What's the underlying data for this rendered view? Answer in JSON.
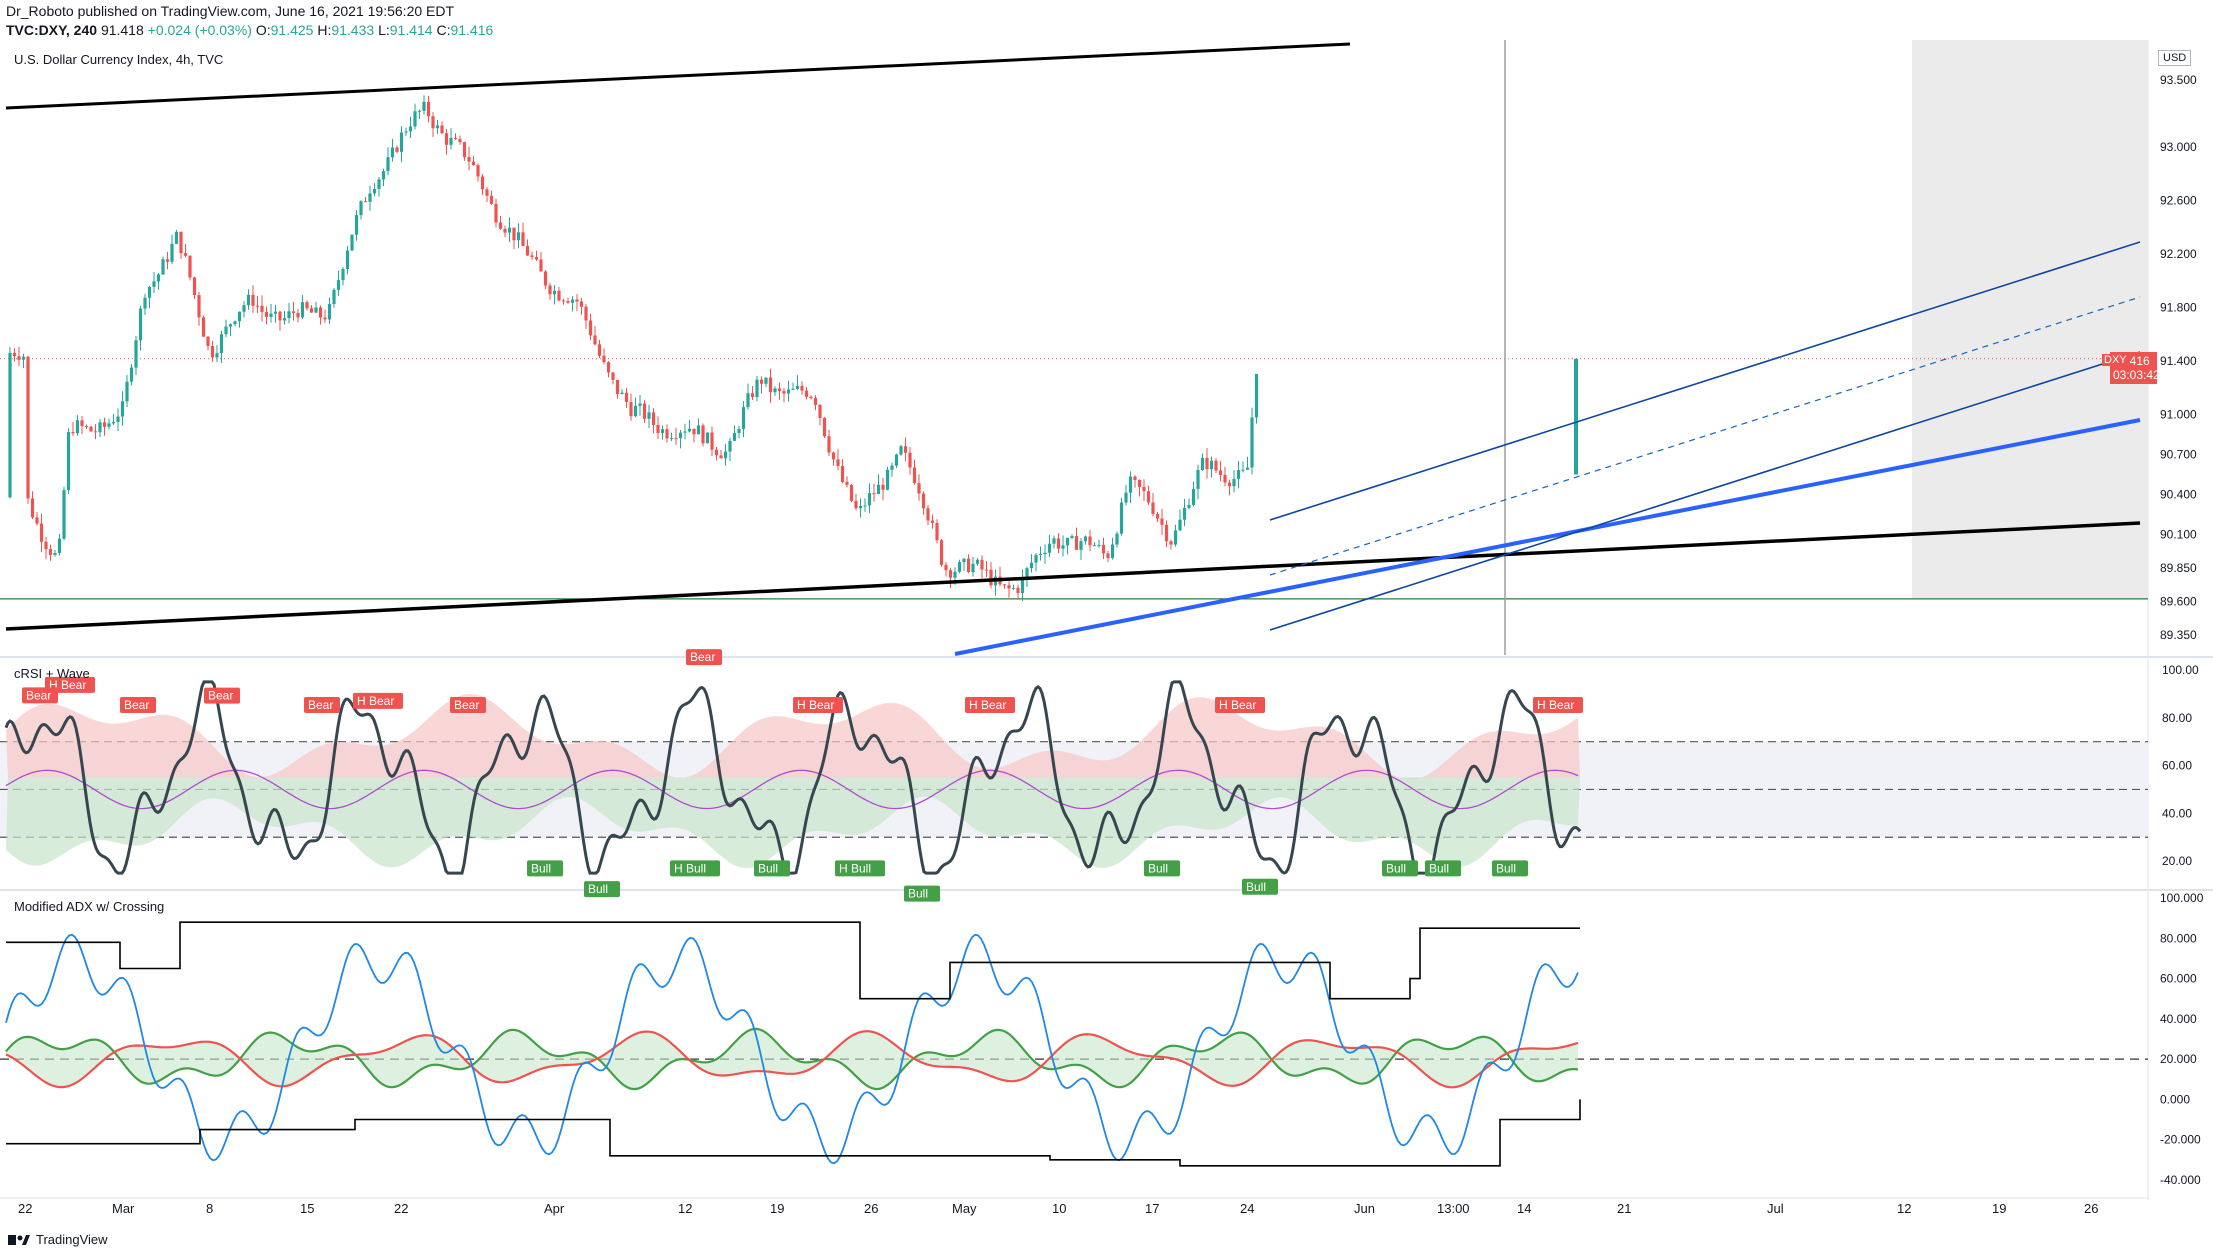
{
  "header": {
    "line1": "Dr_Roboto published on TradingView.com, June 16, 2021 19:56:20 EDT",
    "symbol": "TVC:DXY, 240",
    "last": "91.418",
    "change": "+0.024 (+0.03%)",
    "o_label": "O:",
    "o": "91.425",
    "h_label": "H:",
    "h": "91.433",
    "l_label": "L:",
    "l": "91.414",
    "c_label": "C:",
    "c": "91.416"
  },
  "main_title": "U.S. Dollar Currency Index, 4h, TVC",
  "currency_button": "USD",
  "price_badge": {
    "symbol": "DXY",
    "price": "91.416",
    "countdown": "03:03:42"
  },
  "footer_brand": "TradingView",
  "colors": {
    "bull": "#26a69a",
    "bear": "#ef5350",
    "blue": "#2962ff",
    "green": "#43a047",
    "purple": "#7b3fa0"
  },
  "chart_data": [
    {
      "type": "candlestick",
      "title": "U.S. Dollar Currency Index, 4h, TVC",
      "y_ticks": [
        "93.500",
        "93.000",
        "92.600",
        "92.200",
        "91.800",
        "91.400",
        "91.000",
        "90.700",
        "90.400",
        "90.100",
        "89.850",
        "89.600",
        "89.350"
      ],
      "ylim": [
        89.2,
        93.8
      ],
      "x_ticks": [
        "22",
        "Mar",
        "8",
        "15",
        "22",
        "Apr",
        "12",
        "19",
        "26",
        "May",
        "10",
        "17",
        "24",
        "Jun",
        "13:00",
        "14",
        "21",
        "Jul",
        "12",
        "19",
        "26"
      ],
      "last_price": 91.416,
      "support_level": 89.62,
      "close_path": [
        [
          "2021-02-22",
          90.38
        ],
        [
          "2021-02-25",
          89.9
        ],
        [
          "2021-02-26",
          90.85
        ],
        [
          "2021-03-03",
          91.0
        ],
        [
          "2021-03-05",
          91.95
        ],
        [
          "2021-03-08",
          92.3
        ],
        [
          "2021-03-11",
          91.5
        ],
        [
          "2021-03-15",
          91.85
        ],
        [
          "2021-03-18",
          91.7
        ],
        [
          "2021-03-22",
          91.8
        ],
        [
          "2021-03-26",
          92.75
        ],
        [
          "2021-03-31",
          93.3
        ],
        [
          "2021-04-05",
          92.75
        ],
        [
          "2021-04-09",
          92.2
        ],
        [
          "2021-04-14",
          91.8
        ],
        [
          "2021-04-19",
          91.0
        ],
        [
          "2021-04-23",
          90.9
        ],
        [
          "2021-04-28",
          90.75
        ],
        [
          "2021-05-01",
          91.25
        ],
        [
          "2021-05-06",
          91.1
        ],
        [
          "2021-05-10",
          90.2
        ],
        [
          "2021-05-14",
          90.75
        ],
        [
          "2021-05-18",
          89.9
        ],
        [
          "2021-05-25",
          89.7
        ],
        [
          "2021-05-28",
          90.1
        ],
        [
          "2021-06-02",
          89.95
        ],
        [
          "2021-06-04",
          90.5
        ],
        [
          "2021-06-08",
          90.1
        ],
        [
          "2021-06-11",
          90.6
        ],
        [
          "2021-06-15",
          90.55
        ],
        [
          "2021-06-16",
          91.416
        ]
      ]
    },
    {
      "type": "line",
      "title": "cRSI + Wave",
      "y_ticks": [
        "100.00",
        "80.00",
        "60.00",
        "40.00",
        "20.00"
      ],
      "ylim": [
        10,
        100
      ],
      "ref_lines": [
        70,
        50,
        30
      ],
      "labels": [
        "H Bear",
        "Bear",
        "Bear",
        "Bear",
        "H Bear",
        "Bear",
        "Bear",
        "H Bear",
        "H Bear",
        "H Bear",
        "H Bear",
        "Bear",
        "Bull",
        "Bull",
        "H Bull",
        "Bull",
        "Bull",
        "Bull",
        "Bull",
        "Bull",
        "Bull",
        "Bull",
        "H Bull"
      ]
    },
    {
      "type": "line",
      "title": "Modified ADX w/ Crossing",
      "y_ticks": [
        "100.000",
        "80.000",
        "60.000",
        "40.000",
        "20.000",
        "0.000",
        "-20.000",
        "-40.000"
      ],
      "ylim": [
        -45,
        100
      ],
      "ref_line": 20
    }
  ]
}
